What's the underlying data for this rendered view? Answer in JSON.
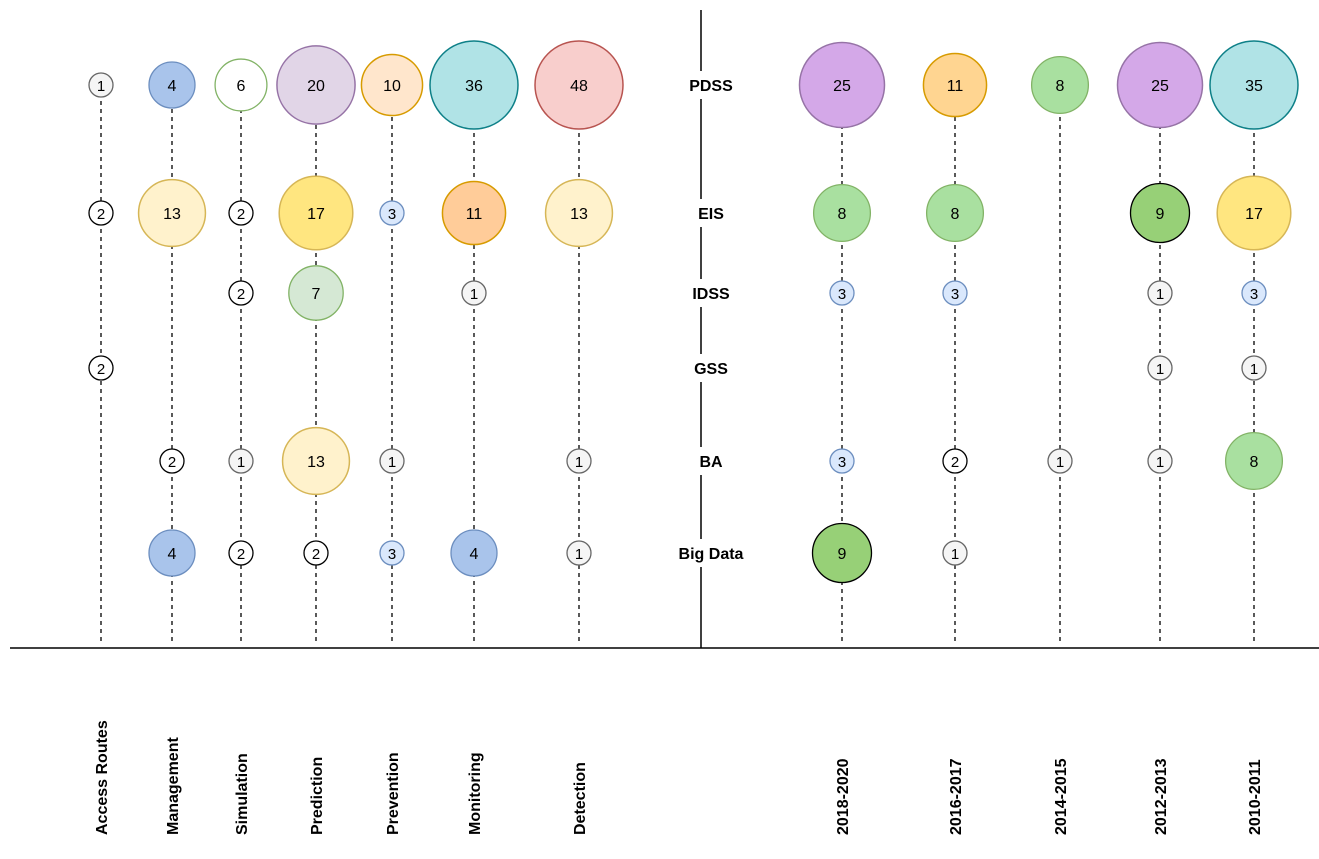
{
  "left_columns": [
    "Access Routes",
    "Management",
    "Simulation",
    "Prediction",
    "Prevention",
    "Monitoring",
    "Detection"
  ],
  "right_columns": [
    "2018-2020",
    "2016-2017",
    "2014-2015",
    "2012-2013",
    "2010-2011"
  ],
  "rows": [
    "PDSS",
    "EIS",
    "IDSS",
    "GSS",
    "BA",
    "Big Data"
  ],
  "colors": {
    "gray": {
      "fill": "#f5f5f5",
      "stroke": "#666666"
    },
    "white": {
      "fill": "#ffffff",
      "stroke": "#000000"
    },
    "blue": {
      "fill": "#a9c4eb",
      "stroke": "#6c8ebf"
    },
    "lblue": {
      "fill": "#dae8fc",
      "stroke": "#6c8ebf"
    },
    "green": {
      "fill": "#a9e0a0",
      "stroke": "#82b366"
    },
    "lgreen": {
      "fill": "#d5e8d4",
      "stroke": "#82b366"
    },
    "dgreen": {
      "fill": "#97d077",
      "stroke": "#000000"
    },
    "wgreen": {
      "fill": "#ffffff",
      "stroke": "#82b366"
    },
    "purple": {
      "fill": "#d4a8e8",
      "stroke": "#9673a6"
    },
    "lpurple": {
      "fill": "#e1d5e7",
      "stroke": "#9673a6"
    },
    "orange": {
      "fill": "#ffd591",
      "stroke": "#d79b00"
    },
    "lorange": {
      "fill": "#ffe6cc",
      "stroke": "#d79b00"
    },
    "peach": {
      "fill": "#ffcc99",
      "stroke": "#d79b00"
    },
    "yellow": {
      "fill": "#ffe680",
      "stroke": "#d6b656"
    },
    "lyellow": {
      "fill": "#fff2cc",
      "stroke": "#d6b656"
    },
    "teal": {
      "fill": "#b0e3e6",
      "stroke": "#0e8088"
    },
    "red": {
      "fill": "#f8cecc",
      "stroke": "#b85450"
    }
  },
  "bubbles": {
    "left": [
      {
        "col": "Access Routes",
        "row": "PDSS",
        "value": 1,
        "color": "gray"
      },
      {
        "col": "Access Routes",
        "row": "EIS",
        "value": 2,
        "color": "white"
      },
      {
        "col": "Access Routes",
        "row": "GSS",
        "value": 2,
        "color": "white"
      },
      {
        "col": "Management",
        "row": "PDSS",
        "value": 4,
        "color": "blue"
      },
      {
        "col": "Management",
        "row": "EIS",
        "value": 13,
        "color": "lyellow"
      },
      {
        "col": "Management",
        "row": "BA",
        "value": 2,
        "color": "white"
      },
      {
        "col": "Management",
        "row": "Big Data",
        "value": 4,
        "color": "blue"
      },
      {
        "col": "Simulation",
        "row": "PDSS",
        "value": 6,
        "color": "wgreen"
      },
      {
        "col": "Simulation",
        "row": "EIS",
        "value": 2,
        "color": "white"
      },
      {
        "col": "Simulation",
        "row": "IDSS",
        "value": 2,
        "color": "white"
      },
      {
        "col": "Simulation",
        "row": "BA",
        "value": 1,
        "color": "gray"
      },
      {
        "col": "Simulation",
        "row": "Big Data",
        "value": 2,
        "color": "white"
      },
      {
        "col": "Prediction",
        "row": "PDSS",
        "value": 20,
        "color": "lpurple"
      },
      {
        "col": "Prediction",
        "row": "EIS",
        "value": 17,
        "color": "yellow"
      },
      {
        "col": "Prediction",
        "row": "IDSS",
        "value": 7,
        "color": "lgreen"
      },
      {
        "col": "Prediction",
        "row": "BA",
        "value": 13,
        "color": "lyellow"
      },
      {
        "col": "Prediction",
        "row": "Big Data",
        "value": 2,
        "color": "white"
      },
      {
        "col": "Prevention",
        "row": "PDSS",
        "value": 10,
        "color": "lorange"
      },
      {
        "col": "Prevention",
        "row": "EIS",
        "value": 3,
        "color": "lblue"
      },
      {
        "col": "Prevention",
        "row": "BA",
        "value": 1,
        "color": "gray"
      },
      {
        "col": "Prevention",
        "row": "Big Data",
        "value": 3,
        "color": "lblue"
      },
      {
        "col": "Monitoring",
        "row": "PDSS",
        "value": 36,
        "color": "teal"
      },
      {
        "col": "Monitoring",
        "row": "EIS",
        "value": 11,
        "color": "peach"
      },
      {
        "col": "Monitoring",
        "row": "IDSS",
        "value": 1,
        "color": "gray"
      },
      {
        "col": "Monitoring",
        "row": "Big Data",
        "value": 4,
        "color": "blue"
      },
      {
        "col": "Detection",
        "row": "PDSS",
        "value": 48,
        "color": "red"
      },
      {
        "col": "Detection",
        "row": "EIS",
        "value": 13,
        "color": "lyellow"
      },
      {
        "col": "Detection",
        "row": "BA",
        "value": 1,
        "color": "gray"
      },
      {
        "col": "Detection",
        "row": "Big Data",
        "value": 1,
        "color": "gray"
      }
    ],
    "right": [
      {
        "col": "2018-2020",
        "row": "PDSS",
        "value": 25,
        "color": "purple"
      },
      {
        "col": "2018-2020",
        "row": "EIS",
        "value": 8,
        "color": "green"
      },
      {
        "col": "2018-2020",
        "row": "IDSS",
        "value": 3,
        "color": "lblue"
      },
      {
        "col": "2018-2020",
        "row": "BA",
        "value": 3,
        "color": "lblue"
      },
      {
        "col": "2018-2020",
        "row": "Big Data",
        "value": 9,
        "color": "dgreen"
      },
      {
        "col": "2016-2017",
        "row": "PDSS",
        "value": 11,
        "color": "orange"
      },
      {
        "col": "2016-2017",
        "row": "EIS",
        "value": 8,
        "color": "green"
      },
      {
        "col": "2016-2017",
        "row": "IDSS",
        "value": 3,
        "color": "lblue"
      },
      {
        "col": "2016-2017",
        "row": "BA",
        "value": 2,
        "color": "white"
      },
      {
        "col": "2016-2017",
        "row": "Big Data",
        "value": 1,
        "color": "gray"
      },
      {
        "col": "2014-2015",
        "row": "PDSS",
        "value": 8,
        "color": "green"
      },
      {
        "col": "2014-2015",
        "row": "BA",
        "value": 1,
        "color": "gray"
      },
      {
        "col": "2012-2013",
        "row": "PDSS",
        "value": 25,
        "color": "purple"
      },
      {
        "col": "2012-2013",
        "row": "EIS",
        "value": 9,
        "color": "dgreen"
      },
      {
        "col": "2012-2013",
        "row": "IDSS",
        "value": 1,
        "color": "gray"
      },
      {
        "col": "2012-2013",
        "row": "GSS",
        "value": 1,
        "color": "gray"
      },
      {
        "col": "2012-2013",
        "row": "BA",
        "value": 1,
        "color": "gray"
      },
      {
        "col": "2010-2011",
        "row": "PDSS",
        "value": 35,
        "color": "teal"
      },
      {
        "col": "2010-2011",
        "row": "EIS",
        "value": 17,
        "color": "yellow"
      },
      {
        "col": "2010-2011",
        "row": "IDSS",
        "value": 3,
        "color": "lblue"
      },
      {
        "col": "2010-2011",
        "row": "GSS",
        "value": 1,
        "color": "gray"
      },
      {
        "col": "2010-2011",
        "row": "BA",
        "value": 8,
        "color": "green"
      }
    ]
  }
}
